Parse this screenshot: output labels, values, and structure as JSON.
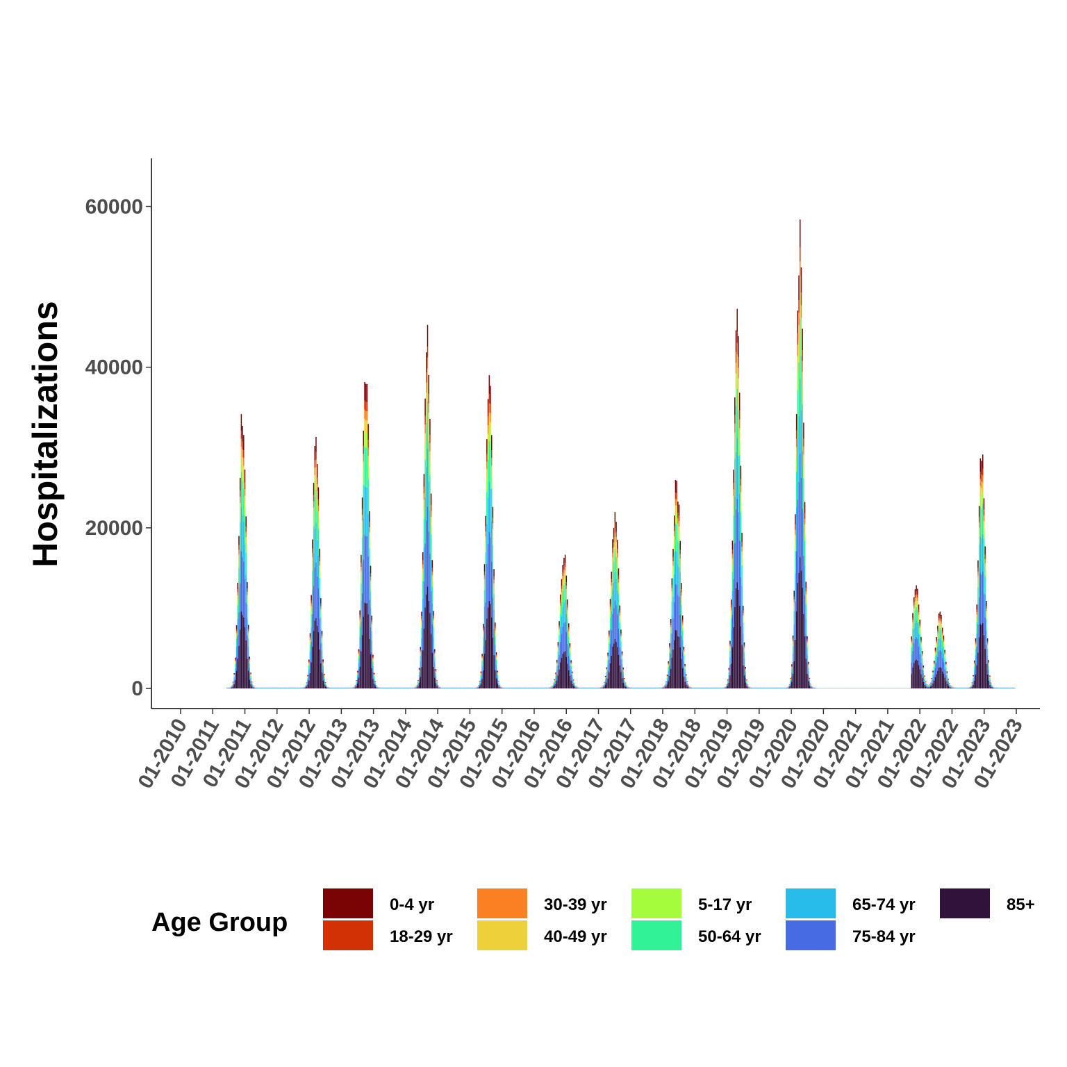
{
  "chart_data": {
    "type": "bar",
    "stacked": true,
    "title": "",
    "xlabel": "",
    "ylabel": "Hospitalizations",
    "ylim": [
      -2500,
      66000
    ],
    "y_ticks": [
      0,
      20000,
      40000,
      60000
    ],
    "x_ticks": [
      "01-2010",
      "01-2011",
      "01-2011",
      "01-2012",
      "01-2012",
      "01-2013",
      "01-2013",
      "01-2014",
      "01-2014",
      "01-2015",
      "01-2015",
      "01-2016",
      "01-2016",
      "01-2017",
      "01-2017",
      "01-2018",
      "01-2018",
      "01-2019",
      "01-2019",
      "01-2020",
      "01-2020",
      "01-2021",
      "01-2021",
      "01-2022",
      "01-2022",
      "01-2023",
      "01-2023"
    ],
    "x_range": [
      "2010-01",
      "2023-07"
    ],
    "grid": false,
    "legend": {
      "title": "Age Group",
      "position": "bottom",
      "entries": [
        "0-4 yr",
        "18-29 yr",
        "30-39 yr",
        "40-49 yr",
        "5-17 yr",
        "50-64 yr",
        "65-74 yr",
        "75-84 yr",
        "85+"
      ]
    },
    "series_colors": {
      "0-4 yr": "#7a0403",
      "18-29 yr": "#d23105",
      "30-39 yr": "#fb8022",
      "40-49 yr": "#edd03a",
      "5-17 yr": "#a4fc3c",
      "50-64 yr": "#32f298",
      "65-74 yr": "#28bceb",
      "75-84 yr": "#466be3",
      "85+": "#30123b"
    },
    "stack_order_bottom_to_top": [
      "85+",
      "75-84 yr",
      "65-74 yr",
      "50-64 yr",
      "5-17 yr",
      "40-49 yr",
      "30-39 yr",
      "18-29 yr",
      "0-4 yr"
    ],
    "age_share_of_total": {
      "85+": 0.28,
      "75-84 yr": 0.22,
      "65-74 yr": 0.16,
      "50-64 yr": 0.13,
      "5-17 yr": 0.05,
      "40-49 yr": 0.04,
      "30-39 yr": 0.03,
      "18-29 yr": 0.03,
      "0-4 yr": 0.06
    },
    "season_peaks": [
      {
        "peak_week": "2011-01-01",
        "total": 37000
      },
      {
        "peak_week": "2012-03-10",
        "total": 32800
      },
      {
        "peak_week": "2012-12-29",
        "total": 42500
      },
      {
        "peak_week": "2013-12-28",
        "total": 47000
      },
      {
        "peak_week": "2014-12-27",
        "total": 41300
      },
      {
        "peak_week": "2016-03-12",
        "total": 17500
      },
      {
        "peak_week": "2017-01-07",
        "total": 22600
      },
      {
        "peak_week": "2018-01-06",
        "total": 27300
      },
      {
        "peak_week": "2018-12-29",
        "total": 52300
      },
      {
        "peak_week": "2020-01-04",
        "total": 62000
      },
      {
        "peak_week": "2021-11-20",
        "total": 13800
      },
      {
        "peak_week": "2022-04-09",
        "total": 10000
      },
      {
        "peak_week": "2022-12-10",
        "total": 31100
      }
    ]
  }
}
